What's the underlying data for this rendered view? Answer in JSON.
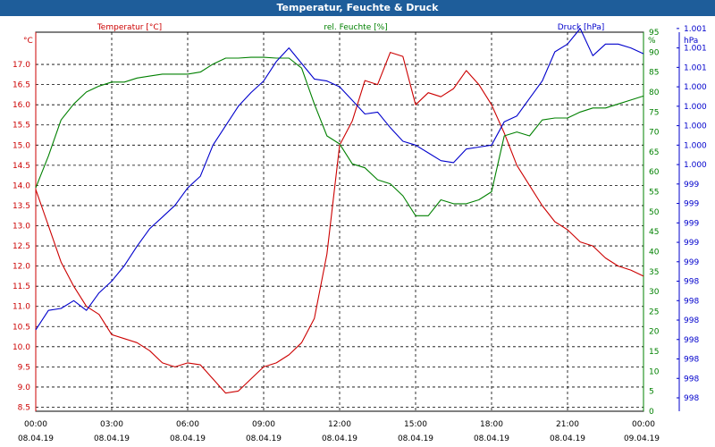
{
  "window_title": "Temperatur, Feuchte & Druck",
  "colors": {
    "temperature": "#cc0000",
    "humidity": "#008000",
    "pressure": "#0000cc",
    "titlebar": "#1e5d9a",
    "grid": "#000000"
  },
  "chart_data": {
    "type": "line",
    "title": "Temperatur, Feuchte & Druck",
    "grid": true,
    "legend_placement": "top",
    "x_ticks": [
      {
        "time": "00:00",
        "date": "08.04.19"
      },
      {
        "time": "03:00",
        "date": "08.04.19"
      },
      {
        "time": "06:00",
        "date": "08.04.19"
      },
      {
        "time": "09:00",
        "date": "08.04.19"
      },
      {
        "time": "12:00",
        "date": "08.04.19"
      },
      {
        "time": "15:00",
        "date": "08.04.19"
      },
      {
        "time": "18:00",
        "date": "08.04.19"
      },
      {
        "time": "21:00",
        "date": "08.04.19"
      },
      {
        "time": "00:00",
        "date": "09.04.19"
      }
    ],
    "x_hours": [
      0,
      0.5,
      1,
      1.5,
      2,
      2.5,
      3,
      3.5,
      4,
      4.5,
      5,
      5.5,
      6,
      6.5,
      7,
      7.5,
      8,
      8.5,
      9,
      9.5,
      10,
      10.5,
      11,
      11.5,
      12,
      12.5,
      13,
      13.5,
      14,
      14.5,
      15,
      15.5,
      16,
      16.5,
      17,
      17.5,
      18,
      18.5,
      19,
      19.5,
      20,
      20.5,
      21,
      21.5,
      22,
      22.5,
      23,
      23.5,
      24
    ],
    "axes": {
      "temperature": {
        "unit_label": "°C",
        "ylim": [
          8.4,
          17.8
        ],
        "ticks": [
          "8.5",
          "9.0",
          "9.5",
          "10.0",
          "10.5",
          "11.0",
          "11.5",
          "12.0",
          "12.5",
          "13.0",
          "13.5",
          "14.0",
          "14.5",
          "15.0",
          "15.5",
          "16.0",
          "16.5",
          "17.0"
        ]
      },
      "humidity": {
        "unit_label": "%",
        "ylim": [
          0,
          95
        ],
        "ticks": [
          "0",
          "5",
          "10",
          "15",
          "20",
          "25",
          "30",
          "35",
          "40",
          "45",
          "50",
          "55",
          "60",
          "65",
          "70",
          "75",
          "80",
          "85",
          "90",
          "95"
        ]
      },
      "pressure": {
        "unit_label": "hPa",
        "ticks": [
          "998",
          "998",
          "998",
          "998",
          "998",
          "998",
          "998",
          "999",
          "999",
          "999",
          "999",
          "999",
          "1.000",
          "1.000",
          "1.000",
          "1.000",
          "1.000",
          "1.001",
          "1.001",
          "1.001"
        ]
      }
    },
    "series": [
      {
        "name": "Temperatur [°C]",
        "axis": "temperature",
        "values": [
          13.9,
          13.0,
          12.1,
          11.5,
          11.0,
          10.8,
          10.3,
          10.2,
          10.1,
          9.9,
          9.6,
          9.5,
          9.6,
          9.55,
          9.2,
          8.85,
          8.9,
          9.2,
          9.5,
          9.6,
          9.8,
          10.1,
          10.7,
          12.3,
          15.0,
          15.6,
          16.6,
          16.5,
          17.3,
          17.2,
          16.0,
          16.3,
          16.2,
          16.4,
          16.85,
          16.5,
          16.0,
          15.3,
          14.5,
          14.0,
          13.5,
          13.1,
          12.9,
          12.6,
          12.5,
          12.2,
          12.0,
          11.9,
          11.75
        ]
      },
      {
        "name": "rel. Feuchte [%]",
        "axis": "humidity",
        "values": [
          56,
          64,
          73,
          77,
          80,
          81.5,
          82.5,
          82.5,
          83.5,
          84,
          84.5,
          84.5,
          84.5,
          85,
          87,
          88.5,
          88.5,
          88.7,
          88.7,
          88.5,
          88.5,
          86,
          77,
          69,
          67,
          62,
          61,
          58,
          57,
          54,
          49,
          49,
          53,
          52,
          52,
          53,
          55,
          69,
          70,
          69,
          73,
          73.5,
          73.5,
          75,
          76,
          76,
          77,
          78,
          79
        ]
      },
      {
        "name": "Druck [hPa]",
        "axis": "pressure",
        "values": [
          3.5,
          4.5,
          4.6,
          5.0,
          4.5,
          5.4,
          6.0,
          6.8,
          7.8,
          8.7,
          9.3,
          9.9,
          10.8,
          11.4,
          13.0,
          14.0,
          15.0,
          15.7,
          16.3,
          17.3,
          18.0,
          17.2,
          16.4,
          16.3,
          16.0,
          15.3,
          14.6,
          14.7,
          13.9,
          13.2,
          13.0,
          12.6,
          12.2,
          12.1,
          12.8,
          12.9,
          13.0,
          14.2,
          14.5,
          15.4,
          16.3,
          17.8,
          18.2,
          19.0,
          17.6,
          18.2,
          18.2,
          18.0,
          17.7
        ]
      }
    ]
  }
}
